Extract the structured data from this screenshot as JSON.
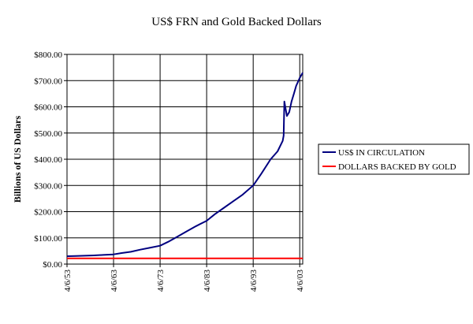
{
  "chart_data": {
    "type": "line",
    "title": "US$ FRN and Gold Backed Dollars",
    "xlabel": "",
    "ylabel": "Billions of US Dollars",
    "ylim": [
      0,
      800
    ],
    "grid": true,
    "legend_position": "right",
    "x_tick_labels": [
      "4/6/53",
      "4/6/63",
      "4/6/73",
      "4/6/83",
      "4/6/93",
      "4/6/03"
    ],
    "y_tick_labels": [
      "$0.00",
      "$100.00",
      "$200.00",
      "$300.00",
      "$400.00",
      "$500.00",
      "$600.00",
      "$700.00",
      "$800.00"
    ],
    "series": [
      {
        "name": "US$ IN  CIRCULATION",
        "color": "#000080",
        "x": [
          1953.26,
          1955,
          1957,
          1959,
          1961,
          1963.26,
          1965,
          1967,
          1969,
          1971,
          1973.26,
          1975,
          1977,
          1979,
          1981,
          1983.26,
          1985,
          1987,
          1989,
          1991,
          1993.26,
          1995,
          1997,
          1998.5,
          1999.6,
          1999.8,
          1999.95,
          2000.5,
          2001,
          2001.5,
          2002,
          2002.5,
          2003.26,
          2003.9
        ],
        "y": [
          30,
          31,
          32,
          33,
          35,
          37,
          42,
          47,
          55,
          62,
          70,
          85,
          105,
          125,
          145,
          165,
          190,
          215,
          240,
          265,
          300,
          345,
          400,
          430,
          470,
          490,
          620,
          565,
          580,
          620,
          650,
          680,
          710,
          730
        ]
      },
      {
        "name": "DOLLARS BACKED BY GOLD",
        "color": "#ff0000",
        "x": [
          1953.26,
          2003.9
        ],
        "y": [
          22,
          22
        ]
      }
    ]
  }
}
